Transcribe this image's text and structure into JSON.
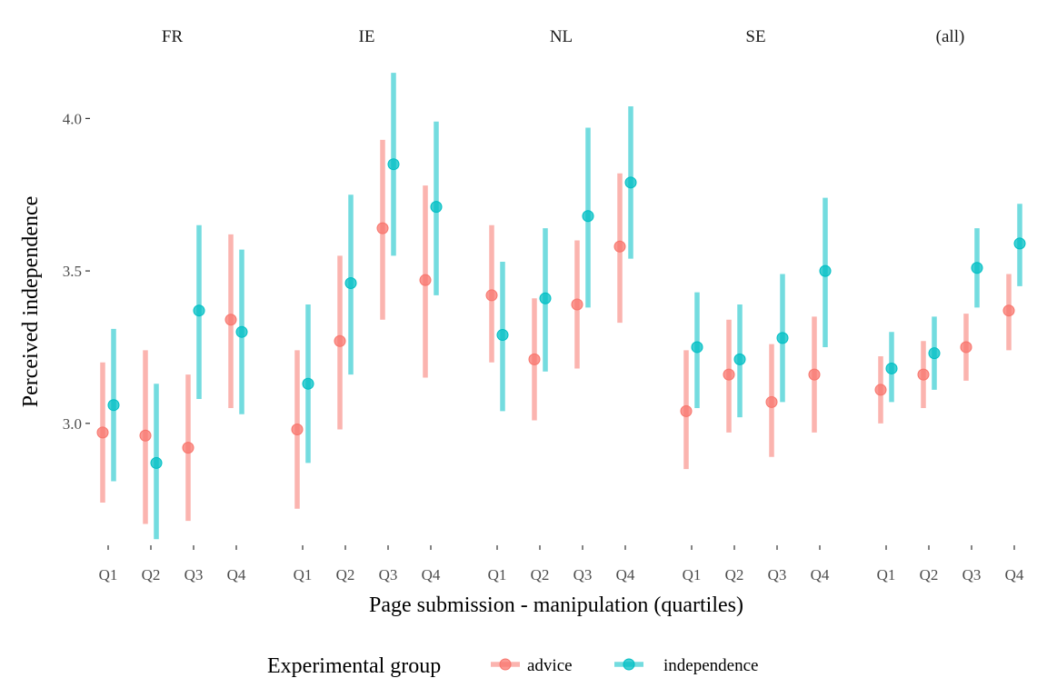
{
  "chart_data": {
    "type": "pointrange",
    "facets": [
      "FR",
      "IE",
      "NL",
      "SE",
      "(all)"
    ],
    "categories": [
      "Q1",
      "Q2",
      "Q3",
      "Q4"
    ],
    "xlabel": "Page submission - manipulation (quartiles)",
    "ylabel": "Perceived independence",
    "ylim": [
      2.6,
      4.18
    ],
    "yticks": [
      3.0,
      3.5,
      4.0
    ],
    "ytick_labels": [
      "3.0",
      "3.5",
      "4.0"
    ],
    "grid": false,
    "legend": {
      "title": "Experimental group",
      "placement": "bottom",
      "entries": [
        "advice",
        "independence"
      ]
    },
    "series": [
      {
        "name": "advice",
        "color": "#F8766D",
        "data": {
          "FR": [
            [
              2.97,
              2.74,
              3.2
            ],
            [
              2.96,
              2.67,
              3.24
            ],
            [
              2.92,
              2.68,
              3.16
            ],
            [
              3.34,
              3.05,
              3.62
            ]
          ],
          "IE": [
            [
              2.98,
              2.72,
              3.24
            ],
            [
              3.27,
              2.98,
              3.55
            ],
            [
              3.64,
              3.34,
              3.93
            ],
            [
              3.47,
              3.15,
              3.78
            ]
          ],
          "NL": [
            [
              3.42,
              3.2,
              3.65
            ],
            [
              3.21,
              3.01,
              3.41
            ],
            [
              3.39,
              3.18,
              3.6
            ],
            [
              3.58,
              3.33,
              3.82
            ]
          ],
          "SE": [
            [
              3.04,
              2.85,
              3.24
            ],
            [
              3.16,
              2.97,
              3.34
            ],
            [
              3.07,
              2.89,
              3.26
            ],
            [
              3.16,
              2.97,
              3.35
            ]
          ],
          "(all)": [
            [
              3.11,
              3.0,
              3.22
            ],
            [
              3.16,
              3.05,
              3.27
            ],
            [
              3.25,
              3.14,
              3.36
            ],
            [
              3.37,
              3.24,
              3.49
            ]
          ]
        }
      },
      {
        "name": "independence",
        "color": "#00BFC4",
        "data": {
          "FR": [
            [
              3.06,
              2.81,
              3.31
            ],
            [
              2.87,
              2.62,
              3.13
            ],
            [
              3.37,
              3.08,
              3.65
            ],
            [
              3.3,
              3.03,
              3.57
            ]
          ],
          "IE": [
            [
              3.13,
              2.87,
              3.39
            ],
            [
              3.46,
              3.16,
              3.75
            ],
            [
              3.85,
              3.55,
              4.15
            ],
            [
              3.71,
              3.42,
              3.99
            ]
          ],
          "NL": [
            [
              3.29,
              3.04,
              3.53
            ],
            [
              3.41,
              3.17,
              3.64
            ],
            [
              3.68,
              3.38,
              3.97
            ],
            [
              3.79,
              3.54,
              4.04
            ]
          ],
          "SE": [
            [
              3.25,
              3.05,
              3.43
            ],
            [
              3.21,
              3.02,
              3.39
            ],
            [
              3.28,
              3.07,
              3.49
            ],
            [
              3.5,
              3.25,
              3.74
            ]
          ],
          "(all)": [
            [
              3.18,
              3.07,
              3.3
            ],
            [
              3.23,
              3.11,
              3.35
            ],
            [
              3.51,
              3.38,
              3.64
            ],
            [
              3.59,
              3.45,
              3.72
            ]
          ]
        }
      }
    ]
  }
}
